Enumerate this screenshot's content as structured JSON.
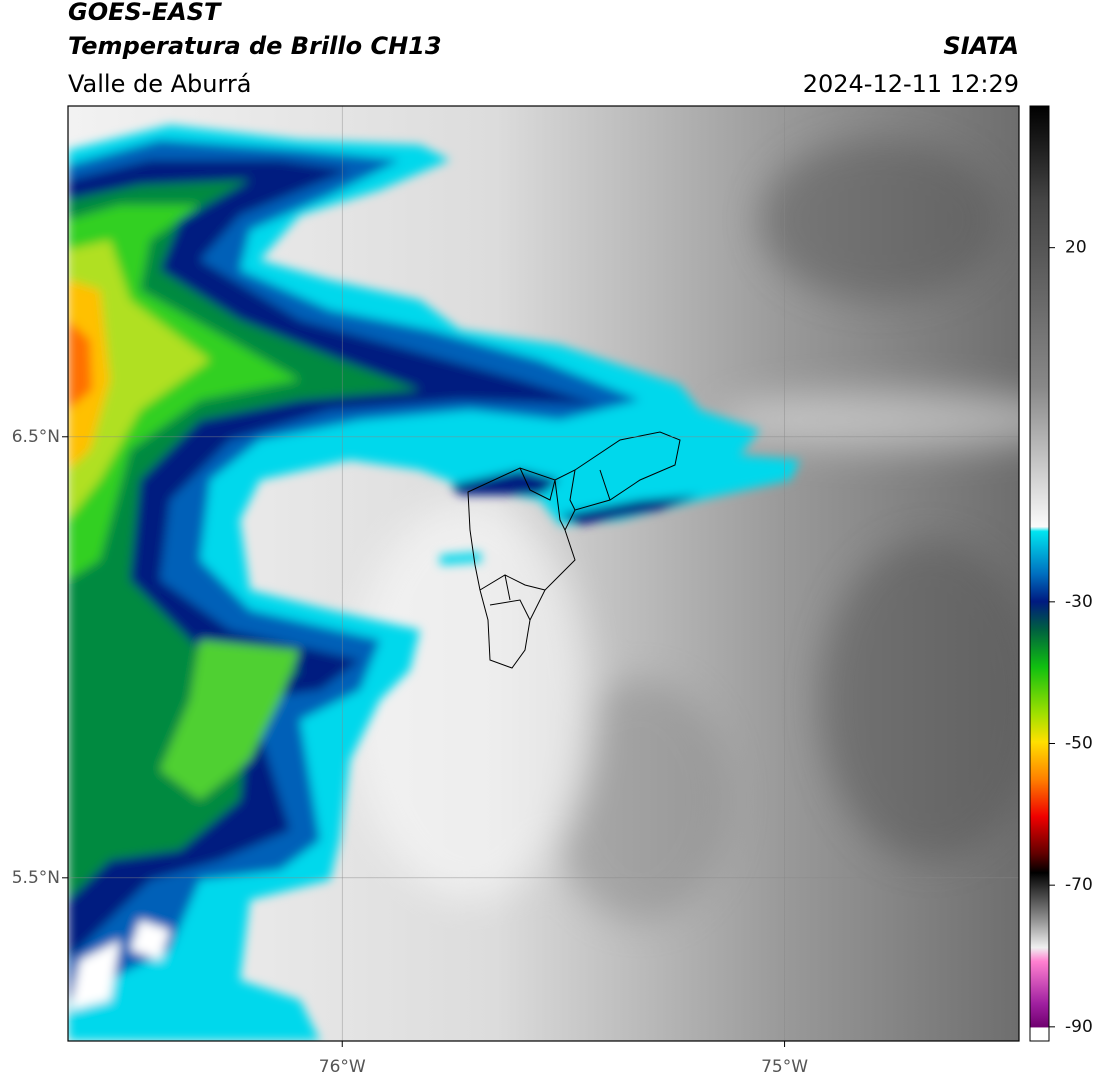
{
  "header": {
    "satellite": "GOES-EAST",
    "product": "Temperatura de Brillo CH13",
    "region": "Valle de Aburrá",
    "source": "SIATA",
    "datetime": "2024-12-11 12:29"
  },
  "map": {
    "xlim": [
      -76.62,
      -74.47
    ],
    "ylim": [
      5.13,
      7.25
    ],
    "xticks": [
      {
        "value": -76,
        "label": "76°W"
      },
      {
        "value": -75,
        "label": "75°W"
      }
    ],
    "yticks": [
      {
        "value": 6.5,
        "label": "6.5°N"
      },
      {
        "value": 5.5,
        "label": "5.5°N"
      }
    ],
    "grid": true
  },
  "colorbar": {
    "lim": [
      -92,
      40
    ],
    "ticks": [
      20,
      -30,
      -50,
      -70,
      -90
    ]
  }
}
